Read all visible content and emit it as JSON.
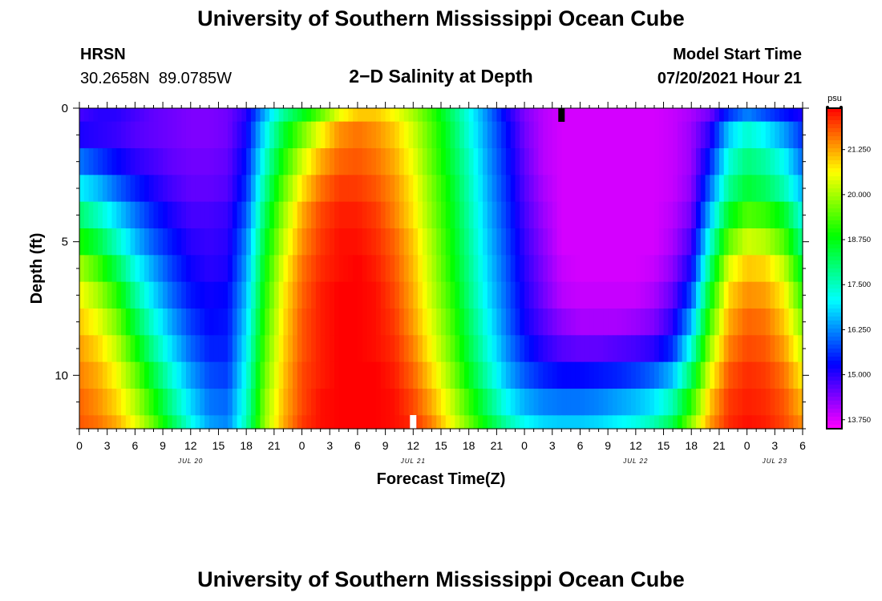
{
  "header": {
    "title": "University of Southern Mississippi Ocean Cube",
    "station": "HRSN",
    "coords": "30.2658N  89.0785W",
    "plot_title": "2−D Salinity at Depth",
    "model_label": "Model Start Time",
    "model_time": "07/20/2021 Hour 21"
  },
  "footer": {
    "title": "University of Southern Mississippi Ocean Cube"
  },
  "chart_data": {
    "type": "heatmap",
    "title": "2−D Salinity at Depth",
    "xlabel": "Forecast Time(Z)",
    "ylabel": "Depth (ft)",
    "yticks": [
      "0",
      "5",
      "10"
    ],
    "xtick_labels": [
      "0",
      "3",
      "6",
      "9",
      "12",
      "15",
      "18",
      "21",
      "0",
      "3",
      "6",
      "9",
      "12",
      "15",
      "18",
      "21",
      "0",
      "3",
      "6",
      "9",
      "12",
      "15",
      "18",
      "21",
      "0",
      "3",
      "6"
    ],
    "date_labels": [
      {
        "label": "JUL 20",
        "hour": 12
      },
      {
        "label": "JUL 21",
        "hour": 36
      },
      {
        "label": "JUL 22",
        "hour": 60
      },
      {
        "label": "JUL 23",
        "hour": 75
      }
    ],
    "x_range_hours": [
      0,
      78
    ],
    "depth_range_ft": [
      0,
      12
    ],
    "colorbar": {
      "unit": "psu",
      "ticks": [
        "21.250",
        "20.000",
        "18.750",
        "17.500",
        "16.250",
        "15.000",
        "13.750"
      ],
      "range": [
        13.5,
        22.4
      ]
    },
    "markers": [
      {
        "hour": 52,
        "depth_ft": 0,
        "color": "#000000"
      },
      {
        "hour": 36,
        "depth_ft": 12,
        "color": "#ffffff"
      }
    ],
    "salinity_series_note": "",
    "grid_hours": [
      0,
      2,
      4,
      6,
      8,
      10,
      12,
      14,
      16,
      18,
      20,
      22,
      24,
      26,
      28,
      30,
      32,
      34,
      36,
      38,
      40,
      42,
      44,
      46,
      48,
      50,
      52,
      54,
      56,
      58,
      60,
      62,
      64,
      66,
      68,
      70,
      72,
      74,
      76,
      78
    ],
    "grid_depths_ft": [
      0,
      1,
      2,
      3,
      4,
      5,
      6,
      7,
      8,
      9,
      10,
      11,
      12
    ],
    "values": [
      [
        14.8,
        15.0,
        15.0,
        14.8,
        14.6,
        14.5,
        14.4,
        14.4,
        14.5,
        15.0,
        16.5,
        17.8,
        18.6,
        19.5,
        20.5,
        21.0,
        21.0,
        20.6,
        20.0,
        19.2,
        18.2,
        17.2,
        16.2,
        15.2,
        14.4,
        14.0,
        13.8,
        13.8,
        13.8,
        13.8,
        13.8,
        13.8,
        13.9,
        14.1,
        14.5,
        15.6,
        16.2,
        15.8,
        15.4,
        15.1
      ],
      [
        15.1,
        15.0,
        14.9,
        14.7,
        14.6,
        14.5,
        14.4,
        14.4,
        14.5,
        15.2,
        17.0,
        18.5,
        19.6,
        20.6,
        21.4,
        21.6,
        21.4,
        21.0,
        20.3,
        19.4,
        18.4,
        17.3,
        16.3,
        15.4,
        14.5,
        14.0,
        13.8,
        13.8,
        13.8,
        13.8,
        13.8,
        13.8,
        13.9,
        14.2,
        15.0,
        16.7,
        17.4,
        17.0,
        16.4,
        15.6
      ],
      [
        16.1,
        15.7,
        15.3,
        15.0,
        14.8,
        14.6,
        14.5,
        14.5,
        14.6,
        15.4,
        17.4,
        19.0,
        20.3,
        21.2,
        21.7,
        21.8,
        21.6,
        21.2,
        20.5,
        19.5,
        18.5,
        17.5,
        16.4,
        15.5,
        14.6,
        14.0,
        13.8,
        13.8,
        13.8,
        13.8,
        13.8,
        13.8,
        13.9,
        14.2,
        15.5,
        17.3,
        18.0,
        17.7,
        17.1,
        16.0
      ],
      [
        17.0,
        16.6,
        16.0,
        15.5,
        15.1,
        14.8,
        14.6,
        14.6,
        14.7,
        15.6,
        17.8,
        19.5,
        20.8,
        21.6,
        22.0,
        22.0,
        21.8,
        21.4,
        20.7,
        19.7,
        18.7,
        17.6,
        16.5,
        15.6,
        14.7,
        14.1,
        13.8,
        13.8,
        13.8,
        13.8,
        13.8,
        13.8,
        13.9,
        14.3,
        16.0,
        17.8,
        18.5,
        18.2,
        17.6,
        16.5
      ],
      [
        18.1,
        17.5,
        16.8,
        16.1,
        15.5,
        15.1,
        14.8,
        14.8,
        14.9,
        15.9,
        18.2,
        19.9,
        21.2,
        21.9,
        22.2,
        22.2,
        22.0,
        21.5,
        20.8,
        19.8,
        18.8,
        17.7,
        16.6,
        15.7,
        14.8,
        14.2,
        13.8,
        13.8,
        13.8,
        13.8,
        13.8,
        13.8,
        14.0,
        14.5,
        16.6,
        18.6,
        19.4,
        19.2,
        18.6,
        17.2
      ],
      [
        19.0,
        18.4,
        17.5,
        16.6,
        15.9,
        15.4,
        15.0,
        14.9,
        15.0,
        16.2,
        18.5,
        20.2,
        21.4,
        22.0,
        22.3,
        22.3,
        22.1,
        21.7,
        21.0,
        20.0,
        18.9,
        17.8,
        16.7,
        15.8,
        14.9,
        14.3,
        13.8,
        13.8,
        13.8,
        13.8,
        13.8,
        13.8,
        14.1,
        14.8,
        17.3,
        19.5,
        20.3,
        20.1,
        19.4,
        17.8
      ],
      [
        20.0,
        19.3,
        18.3,
        17.2,
        16.4,
        15.7,
        15.2,
        15.0,
        15.1,
        16.4,
        18.8,
        20.5,
        21.6,
        22.1,
        22.3,
        22.4,
        22.2,
        21.8,
        21.1,
        20.1,
        19.0,
        17.9,
        16.8,
        15.9,
        15.0,
        14.4,
        13.9,
        13.8,
        13.8,
        13.8,
        13.8,
        13.9,
        14.3,
        15.2,
        18.0,
        20.4,
        21.0,
        20.9,
        20.2,
        18.5
      ],
      [
        20.6,
        20.0,
        19.1,
        17.8,
        16.8,
        16.0,
        15.4,
        15.2,
        15.3,
        16.6,
        19.0,
        20.7,
        21.7,
        22.2,
        22.4,
        22.4,
        22.3,
        21.9,
        21.2,
        20.2,
        19.2,
        18.0,
        16.9,
        16.0,
        15.1,
        14.5,
        14.0,
        13.9,
        13.9,
        13.9,
        13.9,
        14.1,
        14.6,
        15.8,
        18.7,
        20.9,
        21.4,
        21.3,
        20.7,
        19.1
      ],
      [
        21.0,
        20.5,
        19.7,
        18.4,
        17.3,
        16.4,
        15.7,
        15.3,
        15.4,
        16.8,
        19.2,
        20.8,
        21.8,
        22.2,
        22.4,
        22.4,
        22.3,
        22.0,
        21.3,
        20.4,
        19.4,
        18.2,
        17.1,
        16.1,
        15.2,
        14.7,
        14.3,
        14.1,
        14.1,
        14.1,
        14.2,
        14.4,
        15.0,
        16.5,
        19.3,
        21.2,
        21.7,
        21.6,
        21.0,
        19.7
      ],
      [
        21.3,
        20.9,
        20.2,
        19.0,
        17.8,
        16.8,
        16.0,
        15.5,
        15.5,
        17.0,
        19.4,
        20.9,
        21.8,
        22.2,
        22.4,
        22.4,
        22.3,
        22.1,
        21.5,
        20.6,
        19.6,
        18.4,
        17.3,
        16.3,
        15.5,
        15.0,
        14.7,
        14.6,
        14.6,
        14.7,
        14.8,
        15.0,
        15.6,
        17.3,
        19.9,
        21.5,
        21.9,
        21.8,
        21.3,
        20.2
      ],
      [
        21.5,
        21.2,
        20.6,
        19.6,
        18.4,
        17.3,
        16.4,
        15.8,
        15.7,
        17.2,
        19.6,
        21.0,
        21.9,
        22.2,
        22.4,
        22.4,
        22.4,
        22.2,
        21.7,
        20.9,
        19.9,
        18.7,
        17.6,
        16.6,
        15.9,
        15.5,
        15.3,
        15.3,
        15.4,
        15.5,
        15.7,
        16.0,
        16.6,
        18.2,
        20.5,
        21.8,
        22.1,
        22.0,
        21.6,
        20.7
      ],
      [
        21.7,
        21.4,
        20.9,
        20.1,
        19.0,
        17.8,
        16.8,
        16.1,
        16.0,
        17.4,
        19.8,
        21.1,
        21.9,
        22.3,
        22.4,
        22.4,
        22.4,
        22.3,
        21.9,
        21.2,
        20.3,
        19.2,
        18.1,
        17.1,
        16.5,
        16.2,
        16.1,
        16.1,
        16.2,
        16.4,
        16.6,
        16.9,
        17.6,
        19.1,
        21.0,
        22.0,
        22.2,
        22.1,
        21.8,
        21.1
      ],
      [
        21.8,
        21.6,
        21.2,
        20.5,
        19.5,
        18.3,
        17.2,
        16.4,
        16.2,
        17.6,
        19.9,
        21.2,
        22.0,
        22.3,
        22.4,
        22.4,
        22.4,
        22.3,
        22.1,
        21.5,
        20.6,
        19.6,
        18.6,
        17.7,
        17.1,
        16.8,
        16.7,
        16.7,
        16.8,
        17.0,
        17.2,
        17.6,
        18.3,
        19.8,
        21.3,
        22.1,
        22.3,
        22.2,
        21.9,
        21.4
      ]
    ]
  }
}
